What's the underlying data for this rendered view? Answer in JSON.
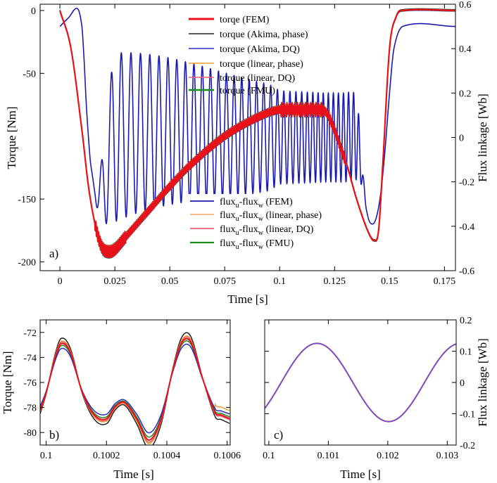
{
  "figure": {
    "panels": [
      "a)",
      "b)",
      "c)"
    ]
  },
  "chart_data": [
    {
      "type": "line",
      "panel": "a)",
      "xlabel": "Time [s]",
      "ylabel": "Torque [Nm]",
      "y2label": "Flux linkage [Wb]",
      "xlim": [
        -0.009,
        0.18
      ],
      "ylim": [
        -207,
        5
      ],
      "y2lim": [
        -0.6,
        0.6
      ],
      "xticks": [
        "0",
        "0.025",
        "0.05",
        "0.075",
        "0.1",
        "0.125",
        "0.15",
        "0.175"
      ],
      "yticks": [
        "0",
        "-50",
        "-150",
        "-200"
      ],
      "y2ticks": [
        "0.6",
        "0.4",
        "0.2",
        "0",
        "-0.2",
        "-0.4",
        "-0.6"
      ],
      "grid": false,
      "legends": [
        {
          "placement": "top-center",
          "entries": [
            {
              "label": "torqe (FEM)",
              "color": "#e8111a"
            },
            {
              "label": "torque (Akima, phase)",
              "color": "#222222"
            },
            {
              "label": "torque (Akima, DQ)",
              "color": "#2a2ac8"
            },
            {
              "label": "torque (linear, phase)",
              "color": "#f0a030"
            },
            {
              "label": "torque (linear, DQ)",
              "color": "#f06070"
            },
            {
              "label": "torque (FMU)",
              "color": "#1a8a1a"
            }
          ]
        },
        {
          "placement": "bottom-center",
          "entries": [
            {
              "label": "flux_u-flux_w (FEM)",
              "text": [
                "flux",
                "u",
                "-flux",
                "w",
                " (FEM)"
              ],
              "color": "#1a1ab0"
            },
            {
              "label": "flux_u-flux_w (linear, phase)",
              "text": [
                "flux",
                "u",
                "-flux",
                "w",
                " (linear, phase)"
              ],
              "color": "#f5b070"
            },
            {
              "label": "flux_u-flux_w (linear, DQ)",
              "text": [
                "flux",
                "u",
                "-flux",
                "w",
                " (linear, DQ)"
              ],
              "color": "#f06070"
            },
            {
              "label": "flux_u-flux_w (FMU)",
              "text": [
                "flux",
                "u",
                "-flux",
                "w",
                " (FMU)"
              ],
              "color": "#1a8a1a"
            }
          ]
        }
      ],
      "torque_envelope": {
        "description_free": true,
        "t": [
          0,
          0.005,
          0.01,
          0.013,
          0.016,
          0.019,
          0.022,
          0.025,
          0.03,
          0.04,
          0.05,
          0.06,
          0.075,
          0.09,
          0.1,
          0.12,
          0.13,
          0.135,
          0.14,
          0.143,
          0.145,
          0.147,
          0.15,
          0.153,
          0.156,
          0.18
        ],
        "mean": [
          0,
          -30,
          -95,
          -140,
          -170,
          -188,
          -192,
          -190,
          -180,
          -160,
          -140,
          -122,
          -100,
          -85,
          -79,
          -79,
          -120,
          -150,
          -175,
          -183,
          -175,
          -120,
          -30,
          -5,
          0,
          0
        ],
        "ripple_amplitude": 3,
        "ripple_period": 0.0006
      },
      "flux_fem": {
        "t": [
          0,
          0.004,
          0.008,
          0.01,
          0.011,
          0.012,
          0.013,
          0.014,
          0.016,
          0.018,
          0.02,
          0.025,
          0.095,
          0.1,
          0.12,
          0.125,
          0.13,
          0.134,
          0.136,
          0.138,
          0.14,
          0.142,
          0.144,
          0.146,
          0.148,
          0.15,
          0.152,
          0.156,
          0.18
        ],
        "center": [
          0.5,
          0.54,
          0.58,
          0.5,
          0.35,
          0.15,
          0,
          -0.12,
          -0.24,
          -0.28,
          -0.2,
          0,
          0,
          0,
          0,
          0,
          0,
          0,
          -0.05,
          -0.2,
          -0.35,
          -0.39,
          -0.36,
          -0.25,
          -0.05,
          0.2,
          0.4,
          0.5,
          0.5
        ],
        "amplitude": [
          0,
          0,
          0,
          0,
          0,
          0,
          0,
          0,
          0.02,
          0.1,
          0.2,
          0.38,
          0.24,
          0.21,
          0.2,
          0.2,
          0.2,
          0.2,
          0.15,
          0.03,
          0,
          0,
          0,
          0,
          0,
          0,
          0,
          0,
          0
        ],
        "period": [
          0.0047,
          0.0047,
          0.0047,
          0.0047,
          0.0047,
          0.0047,
          0.0047,
          0.0047,
          0.0047,
          0.0047,
          0.0047,
          0.0045,
          0.0032,
          0.0029,
          0.0023,
          0.0023,
          0.0023,
          0.0023,
          0.0023,
          0.0023,
          0.0023,
          0.0023,
          0.0023,
          0.0023,
          0.0023,
          0.0023,
          0.0023,
          0.0023,
          0.0023
        ]
      }
    },
    {
      "type": "line",
      "panel": "b)",
      "xlabel": "Time [s]",
      "ylabel": "Torque [Nm]",
      "xlim": [
        0.09998,
        0.10061
      ],
      "ylim": [
        -81,
        -71
      ],
      "xticks": [
        "0.1",
        "0.1002",
        "0.1004",
        "0.1006"
      ],
      "yticks": [
        "-72",
        "-74",
        "-76",
        "-78",
        "-80"
      ],
      "grid": false,
      "base_curve": {
        "t": [
          0.09998,
          0.1,
          0.10003,
          0.10005,
          0.10008,
          0.10012,
          0.10016,
          0.1002,
          0.10023,
          0.10026,
          0.1003,
          0.10034,
          0.10038,
          0.10042,
          0.10045,
          0.10048,
          0.10052,
          0.10056,
          0.10058,
          0.10061
        ],
        "torque": [
          -78.2,
          -76.8,
          -74.0,
          -72.9,
          -73.6,
          -76.8,
          -78.6,
          -78.9,
          -77.9,
          -77.6,
          -78.9,
          -80.6,
          -79.0,
          -75.0,
          -72.8,
          -72.8,
          -75.8,
          -78.4,
          -78.6,
          -78.9
        ]
      },
      "series": [
        {
          "name": "torqe (FEM)",
          "color": "#e8111a",
          "offset": 0.0
        },
        {
          "name": "torque (Akima, phase)",
          "color": "#222222",
          "offset": 0.55
        },
        {
          "name": "torque (Akima, DQ)",
          "color": "#2a2ac8",
          "offset": -0.5
        },
        {
          "name": "torque (linear, phase)",
          "color": "#f0a030",
          "offset": 0.25
        },
        {
          "name": "torque (linear, DQ)",
          "color": "#f06070",
          "offset": 0.15
        },
        {
          "name": "torque (FMU)",
          "color": "#1a8a1a",
          "offset": -0.2
        }
      ]
    },
    {
      "type": "line",
      "panel": "c)",
      "xlabel": "Time [s]",
      "y2label": "Flux linkage [Wb]",
      "xlim": [
        0.09993,
        0.10315
      ],
      "ylim": [
        -0.2,
        0.2
      ],
      "xticks": [
        "0.1",
        "0.101",
        "0.102",
        "0.103"
      ],
      "y2ticks": [
        "0.2",
        "0.1",
        "0",
        "-0.1",
        "-0.2"
      ],
      "grid": false,
      "sine": {
        "amplitude": 0.125,
        "peak_time": 0.10081,
        "period": 0.00241
      },
      "series": [
        {
          "name": "flux_u-flux_w (FEM)",
          "color": "#6a4ad0"
        }
      ]
    }
  ]
}
